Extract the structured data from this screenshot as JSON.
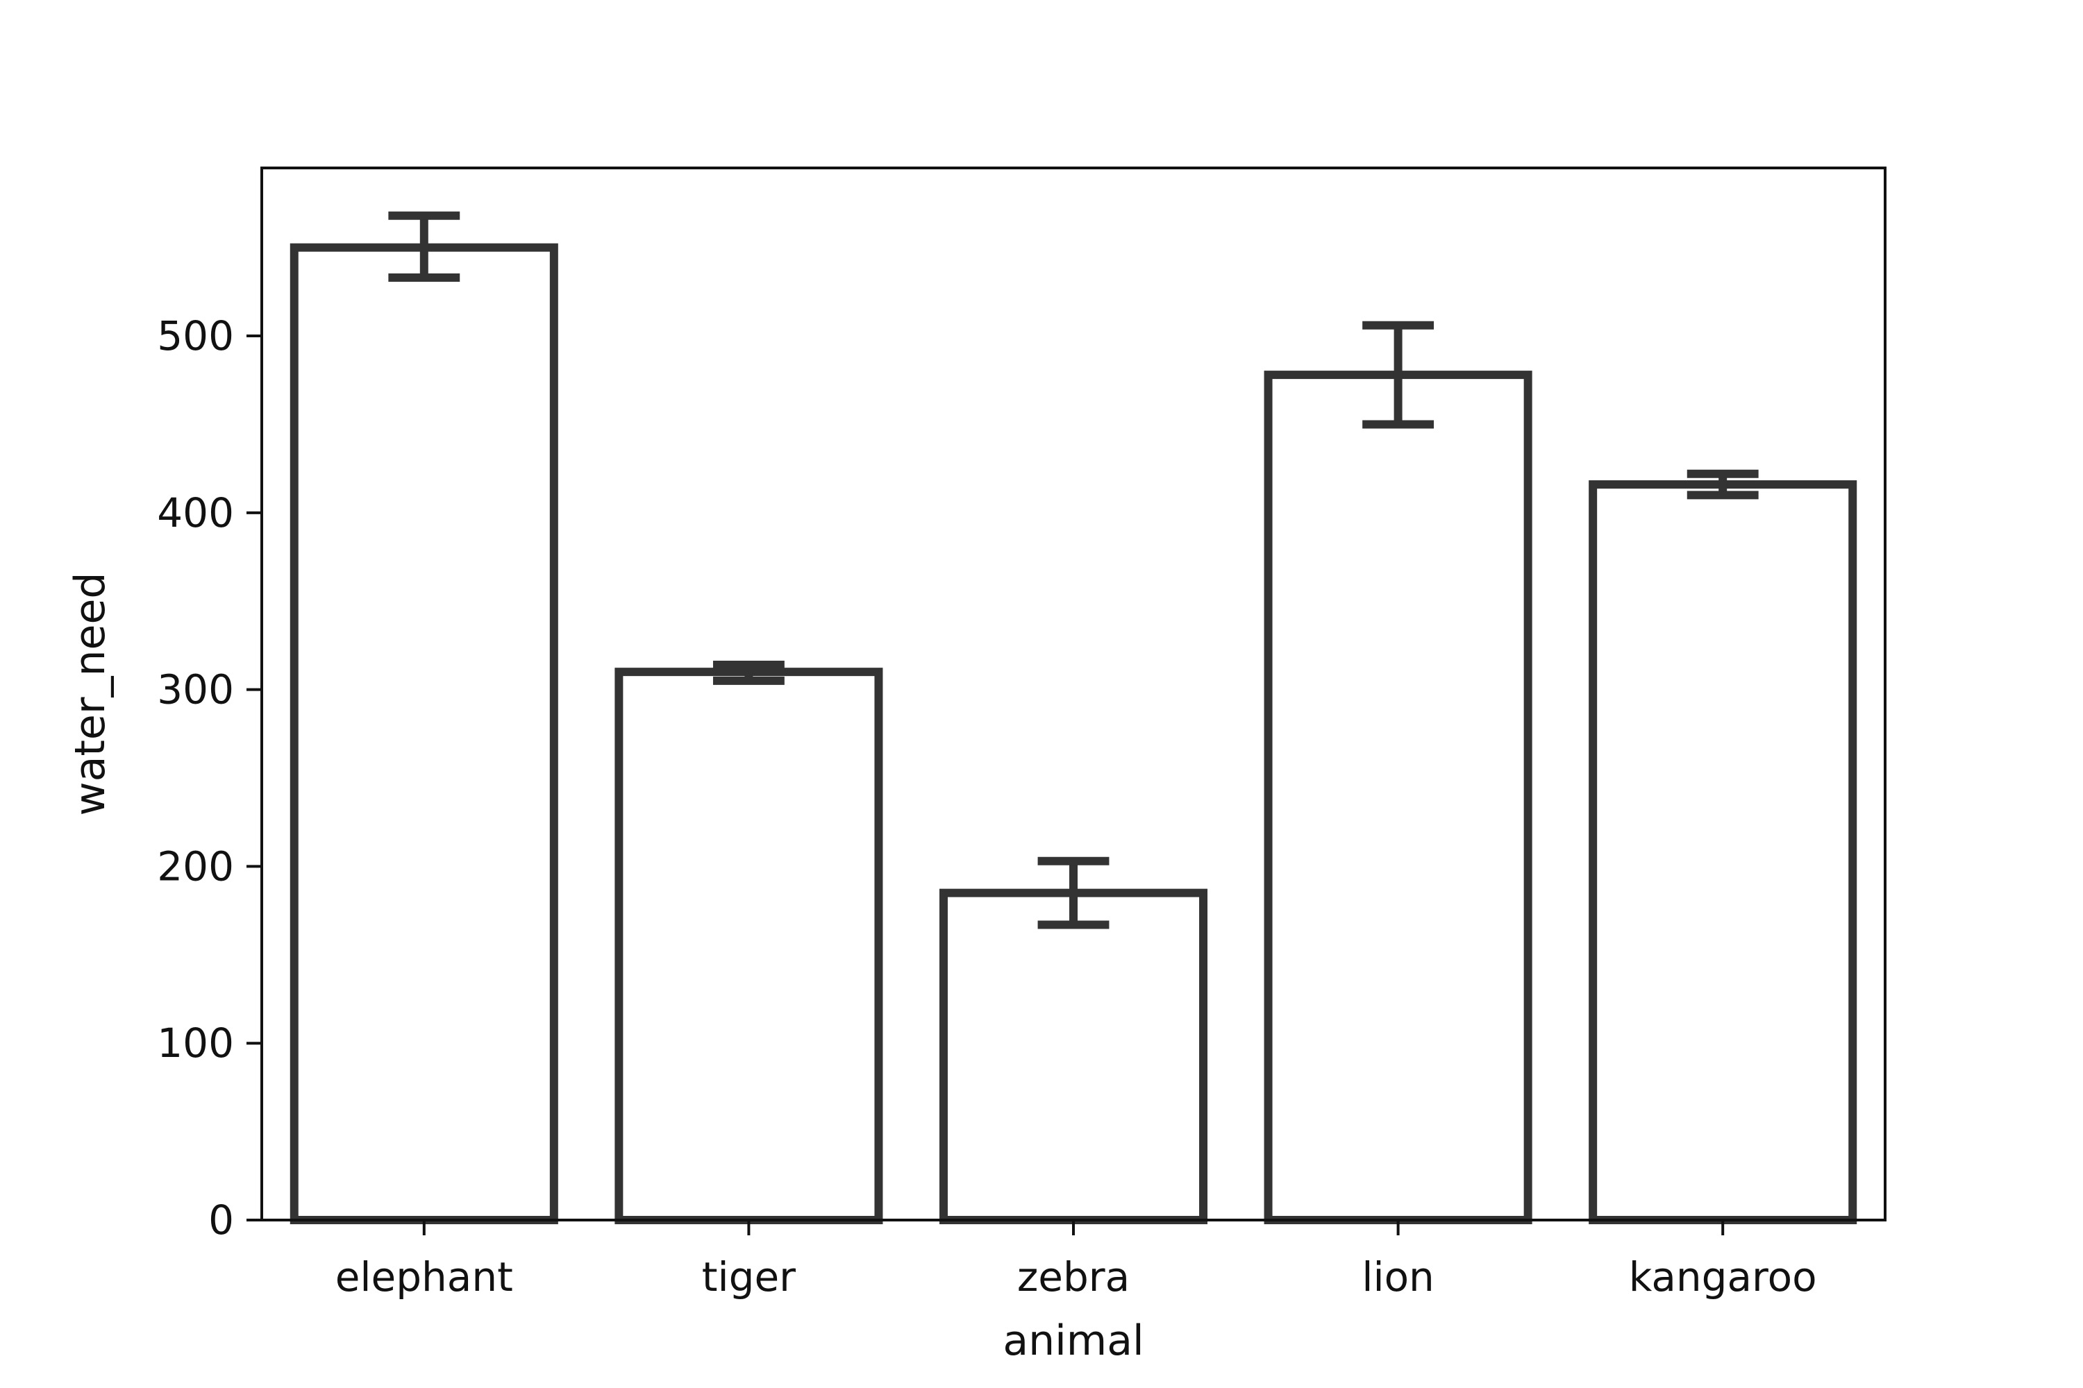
{
  "chart_data": {
    "type": "bar",
    "categories": [
      "elephant",
      "tiger",
      "zebra",
      "lion",
      "kangaroo"
    ],
    "values": [
      550,
      310,
      185,
      478,
      416
    ],
    "error": [
      [
        533,
        568
      ],
      [
        305,
        314
      ],
      [
        167,
        203
      ],
      [
        450,
        506
      ],
      [
        410,
        422
      ]
    ],
    "xlabel": "animal",
    "ylabel": "water_need",
    "ylim": [
      0,
      595
    ],
    "yticks": [
      0,
      100,
      200,
      300,
      400,
      500
    ],
    "grid": false,
    "bar_fill": "#ffffff",
    "bar_edge": "#333333"
  }
}
